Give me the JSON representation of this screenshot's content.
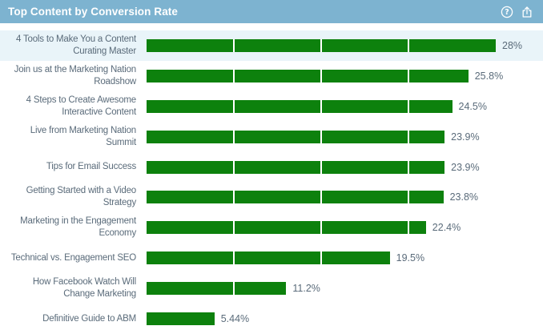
{
  "header": {
    "title": "Top Content by Conversion Rate",
    "background_color": "#7db3d0",
    "icons": [
      {
        "name": "help-icon"
      },
      {
        "name": "export-icon"
      }
    ]
  },
  "chart_data": {
    "type": "bar",
    "orientation": "horizontal",
    "title": "Top Content by Conversion Rate",
    "categories": [
      "4 Tools to Make You a Content Curating Master",
      "Join us at the Marketing Nation Roadshow",
      "4 Steps to Create Awesome Interactive Content",
      "Live from Marketing Nation Summit",
      "Tips for Email Success",
      "Getting Started with a Video Strategy",
      "Marketing in the Engagement Economy",
      "Technical vs. Engagement SEO",
      "How Facebook Watch Will Change Marketing",
      "Definitive Guide to ABM"
    ],
    "values": [
      28,
      25.8,
      24.5,
      23.9,
      23.9,
      23.8,
      22.4,
      19.5,
      11.2,
      5.44
    ],
    "value_labels": [
      "28%",
      "25.8%",
      "24.5%",
      "23.9%",
      "23.9%",
      "23.8%",
      "22.4%",
      "19.5%",
      "11.2%",
      "5.44%"
    ],
    "xlabel": "",
    "ylabel": "",
    "xlim": [
      0,
      28
    ],
    "gridlines_at": [
      7,
      14,
      21
    ],
    "grid": true,
    "legend": false,
    "bar_color": "#0d810d",
    "gridline_color": "#ffffff",
    "highlighted_row_index": 0,
    "highlight_color": "#e9f4f9"
  }
}
